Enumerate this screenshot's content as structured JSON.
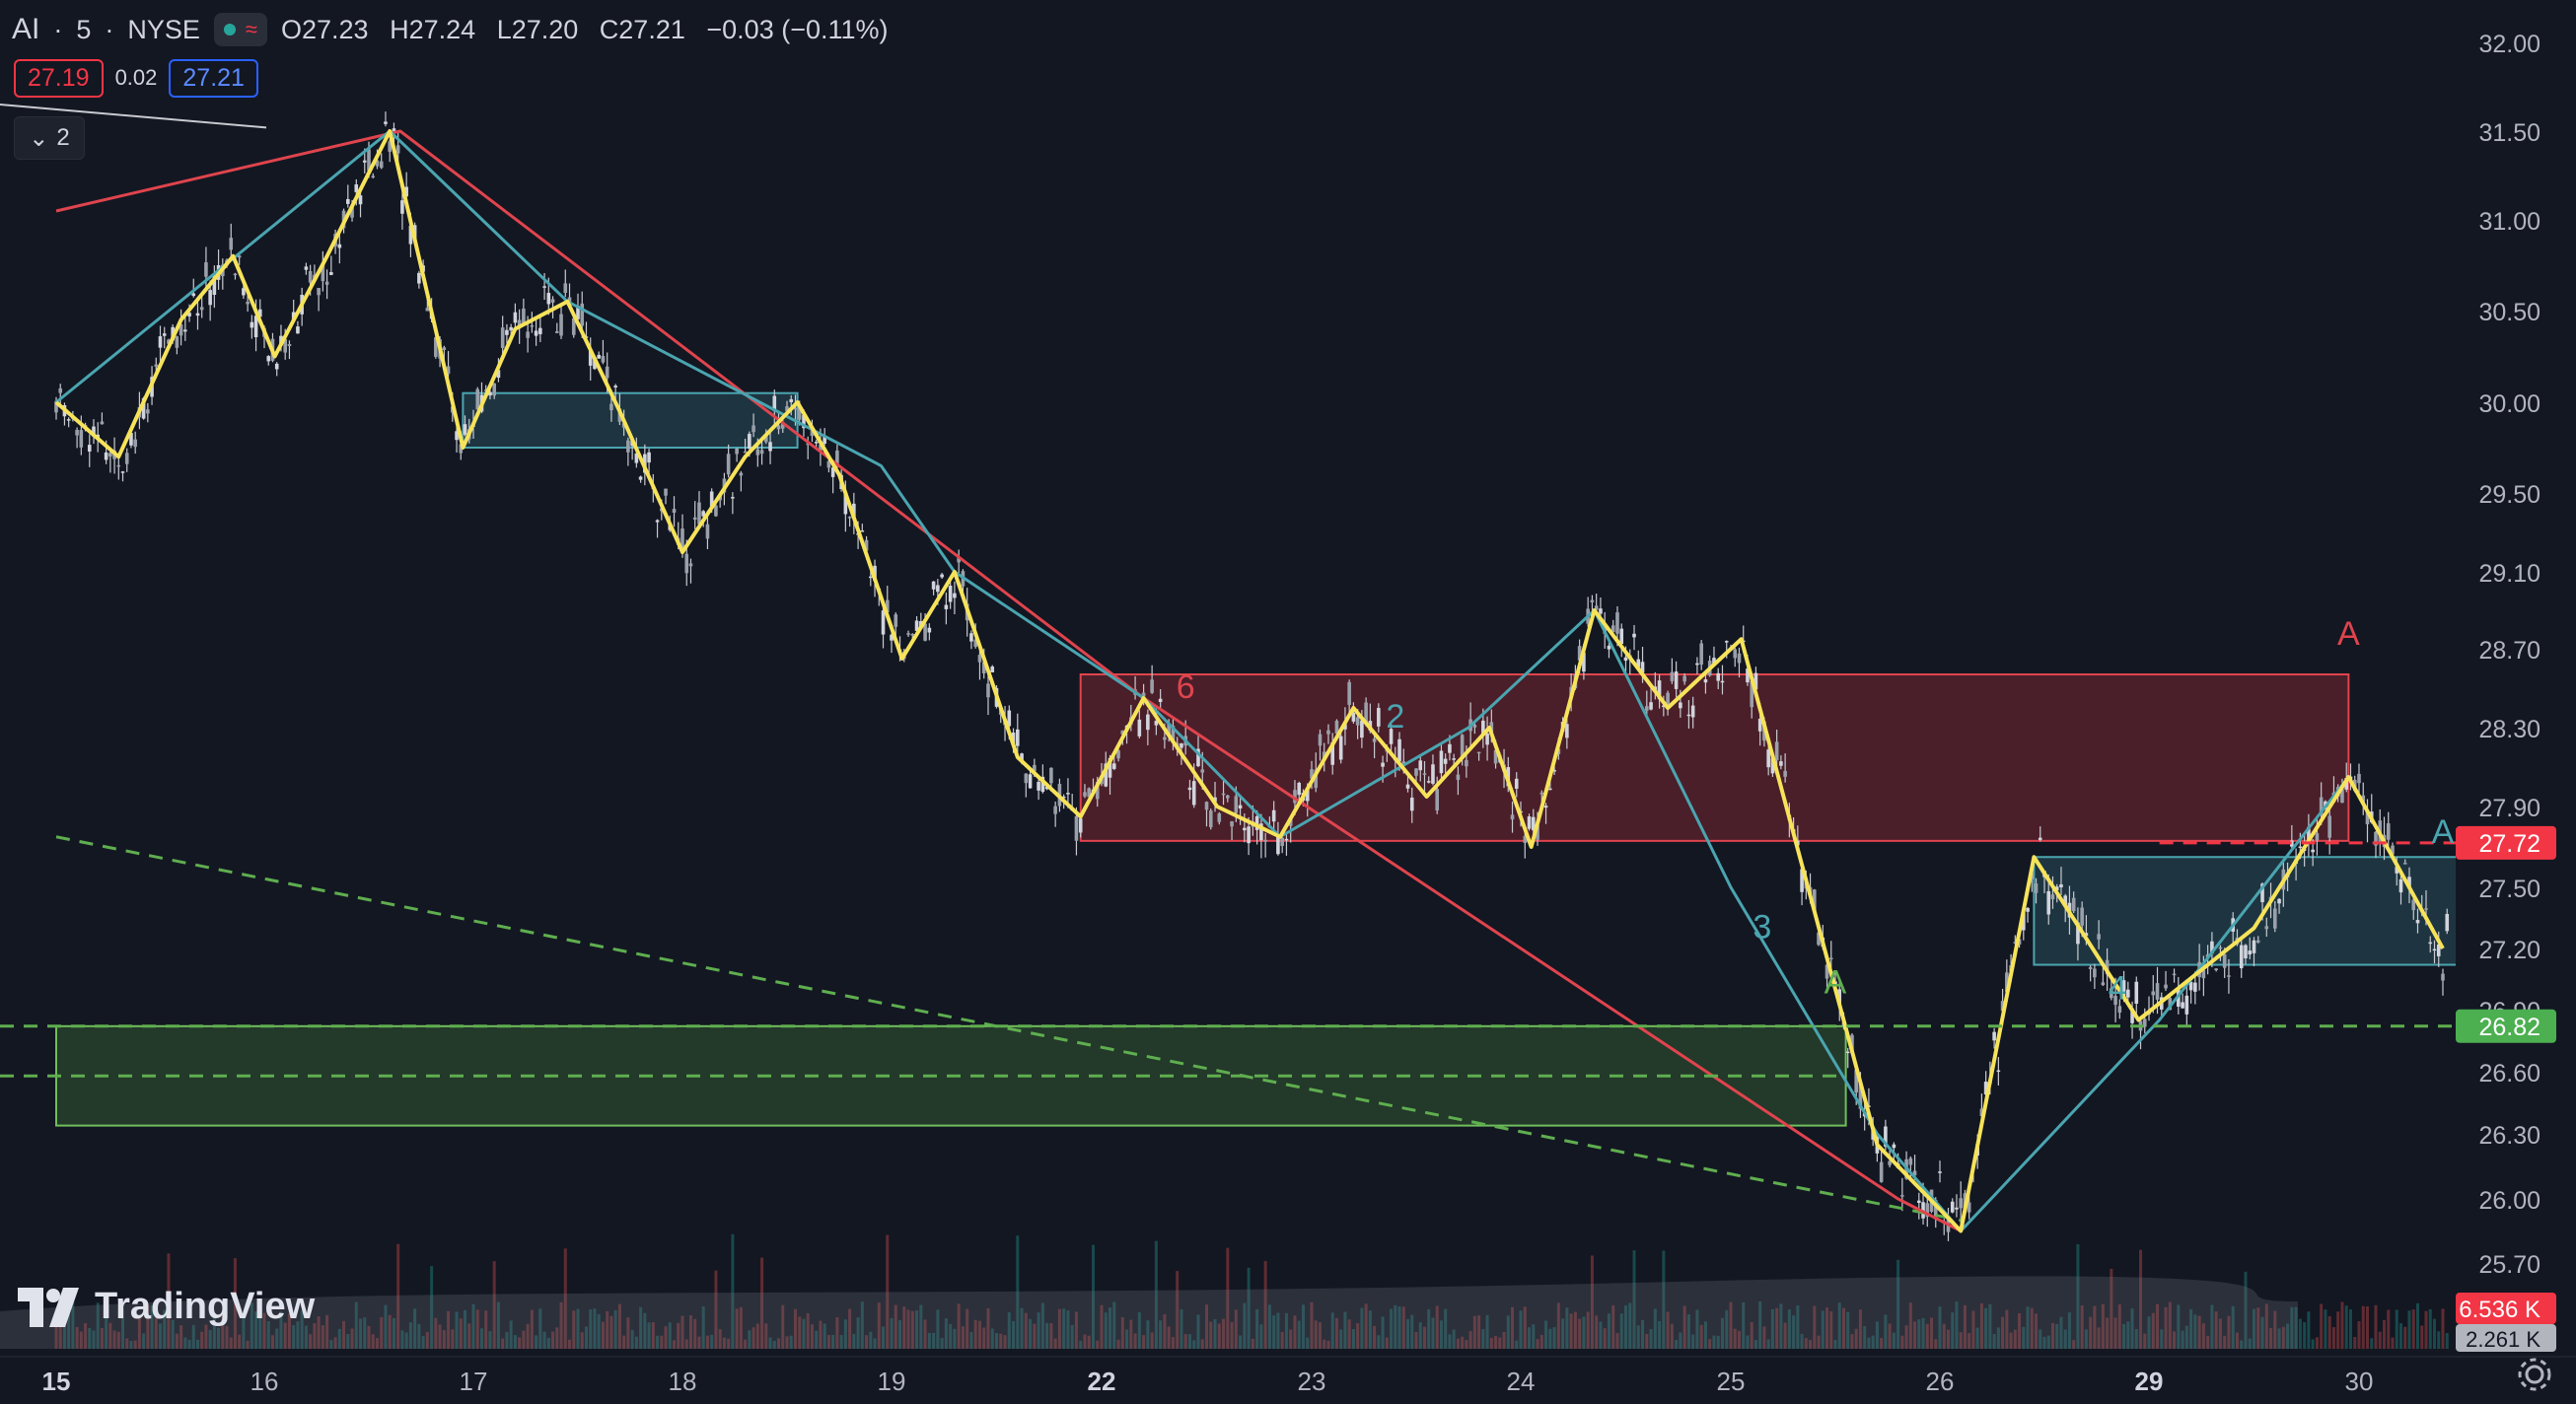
{
  "legend": {
    "symbol": "AI",
    "interval": "5",
    "exchange": "NYSE",
    "open": "O27.23",
    "high": "H27.24",
    "low": "L27.20",
    "close": "C27.21",
    "change": "−0.03 (−0.11%)"
  },
  "trade": {
    "sell": "27.19",
    "spread": "0.02",
    "buy": "27.21"
  },
  "collapse_count": "2",
  "brand": "TradingView",
  "colors": {
    "background": "#131722",
    "up": "#d1d4dc",
    "down": "#d1d4dc",
    "zigzag": "#f6e35a",
    "trend_teal": "#4aa5b0",
    "trend_red": "#e0444d",
    "supply_zone": "#a52c37",
    "demand_zone": "#2f5a2f",
    "green_dash": "#5fae4f",
    "red_dash": "#f23645",
    "price_label_red": "#f23645",
    "price_label_green": "#4caf50"
  },
  "chart_data": {
    "type": "candlestick",
    "yaxis": [
      "32.00",
      "31.50",
      "31.00",
      "30.50",
      "30.00",
      "29.50",
      "29.10",
      "28.70",
      "28.30",
      "27.90",
      "27.50",
      "27.20",
      "26.90",
      "26.60",
      "26.30",
      "26.00",
      "25.70"
    ],
    "ylim": [
      25.5,
      32.2
    ],
    "xaxis": [
      "15",
      "16",
      "17",
      "18",
      "19",
      "22",
      "23",
      "24",
      "25",
      "26",
      "29",
      "30"
    ],
    "bold_ticks": [
      "15",
      "22",
      "29"
    ],
    "last_price_labels": {
      "red": "27.72",
      "green": "26.82"
    },
    "volume_labels": [
      "6.536 K",
      "2.261 K"
    ],
    "zigzag_points": [
      [
        0.0,
        30.0
      ],
      [
        0.3,
        29.7
      ],
      [
        0.6,
        30.45
      ],
      [
        0.85,
        30.8
      ],
      [
        1.05,
        30.25
      ],
      [
        1.3,
        30.8
      ],
      [
        1.6,
        31.5
      ],
      [
        1.95,
        29.75
      ],
      [
        2.2,
        30.4
      ],
      [
        2.45,
        30.55
      ],
      [
        2.7,
        29.95
      ],
      [
        3.0,
        29.2
      ],
      [
        3.3,
        29.7
      ],
      [
        3.55,
        30.0
      ],
      [
        3.75,
        29.6
      ],
      [
        4.05,
        28.65
      ],
      [
        4.3,
        29.1
      ],
      [
        4.6,
        28.15
      ],
      [
        4.9,
        27.85
      ],
      [
        5.2,
        28.45
      ],
      [
        5.55,
        27.9
      ],
      [
        5.85,
        27.75
      ],
      [
        6.2,
        28.4
      ],
      [
        6.55,
        27.95
      ],
      [
        6.85,
        28.3
      ],
      [
        7.05,
        27.7
      ],
      [
        7.35,
        28.9
      ],
      [
        7.7,
        28.4
      ],
      [
        8.05,
        28.75
      ],
      [
        8.7,
        26.25
      ],
      [
        9.1,
        25.85
      ],
      [
        9.45,
        27.65
      ],
      [
        9.95,
        26.85
      ],
      [
        10.5,
        27.3
      ],
      [
        10.95,
        28.05
      ],
      [
        11.4,
        27.2
      ]
    ],
    "teal_points": [
      [
        0.0,
        30.0
      ],
      [
        1.6,
        31.5
      ],
      [
        2.45,
        30.55
      ],
      [
        3.95,
        29.65
      ],
      [
        4.3,
        29.1
      ],
      [
        5.2,
        28.45
      ],
      [
        5.85,
        27.75
      ],
      [
        6.75,
        28.3
      ],
      [
        7.35,
        28.9
      ],
      [
        8.0,
        27.5
      ],
      [
        8.7,
        26.3
      ],
      [
        9.1,
        25.85
      ],
      [
        10.05,
        26.85
      ],
      [
        10.95,
        28.05
      ]
    ],
    "red_points": [
      [
        0.0,
        31.05
      ],
      [
        1.65,
        31.5
      ],
      [
        5.2,
        28.45
      ],
      [
        8.8,
        26.0
      ],
      [
        9.1,
        25.85
      ]
    ],
    "green_dash_line": [
      [
        0.0,
        27.75
      ],
      [
        9.1,
        25.9
      ]
    ],
    "annotations": [
      {
        "text": "A",
        "color": "#e0444d",
        "x": 10.95,
        "y": 28.72
      },
      {
        "text": "A",
        "color": "#4aa5b0",
        "x": 11.4,
        "y": 27.72
      },
      {
        "text": "A",
        "color": "#5fae4f",
        "x": 8.5,
        "y": 26.98
      },
      {
        "text": "6",
        "color": "#e0444d",
        "x": 5.4,
        "y": 28.45
      },
      {
        "text": "2",
        "color": "#4aa5b0",
        "x": 6.4,
        "y": 28.3
      },
      {
        "text": "3",
        "color": "#4aa5b0",
        "x": 8.15,
        "y": 27.25
      },
      {
        "text": "4",
        "color": "#4aa5b0",
        "x": 9.85,
        "y": 26.95
      }
    ],
    "zones": [
      {
        "name": "supply",
        "x0": 4.9,
        "x1": 10.95,
        "y0": 27.73,
        "y1": 28.57,
        "color": "#a52c37"
      },
      {
        "name": "demand",
        "x0": 0.0,
        "x1": 8.55,
        "y0": 26.34,
        "y1": 26.82,
        "color": "#2f5a2f"
      },
      {
        "name": "teal-box-left",
        "x0": 1.95,
        "x1": 3.55,
        "y0": 29.75,
        "y1": 30.05,
        "color": "#4aa5b0"
      },
      {
        "name": "teal-box-right",
        "x0": 9.45,
        "x1": 11.55,
        "y0": 27.12,
        "y1": 27.65,
        "color": "#4aa5b0"
      }
    ]
  }
}
